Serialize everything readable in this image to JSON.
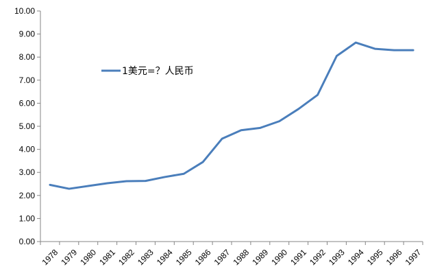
{
  "chart_data": {
    "type": "line",
    "title": "",
    "xlabel": "",
    "ylabel": "",
    "categories": [
      "1978",
      "1979",
      "1980",
      "1981",
      "1982",
      "1983",
      "1984",
      "1985",
      "1986",
      "1987",
      "1988",
      "1989",
      "1990",
      "1991",
      "1992",
      "1993",
      "1994",
      "1995",
      "1996",
      "1997"
    ],
    "series": [
      {
        "name": "1美元=？人民币",
        "color": "#4A7EBB",
        "values": [
          2.46,
          2.29,
          2.41,
          2.53,
          2.62,
          2.63,
          2.8,
          2.94,
          3.45,
          4.46,
          4.83,
          4.93,
          5.22,
          5.75,
          6.36,
          8.05,
          8.63,
          8.36,
          8.3,
          8.3
        ]
      }
    ],
    "ylim": [
      0,
      10
    ],
    "yticks": [
      "0.00",
      "1.00",
      "2.00",
      "3.00",
      "4.00",
      "5.00",
      "6.00",
      "7.00",
      "8.00",
      "9.00",
      "10.00"
    ],
    "grid": false,
    "legend_position": "upper-left-inside"
  }
}
